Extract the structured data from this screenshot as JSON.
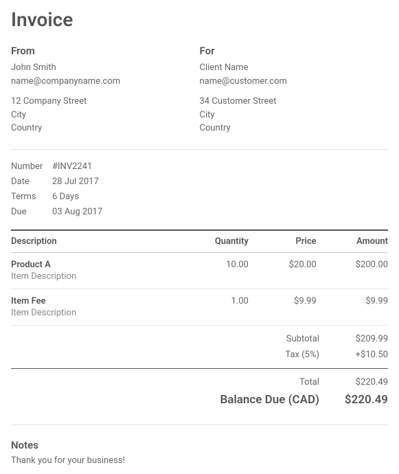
{
  "title": "Invoice",
  "from": {
    "heading": "From",
    "name": "John Smith",
    "email": "name@companyname.com",
    "street": "12 Company Street",
    "city": "City",
    "country": "Country"
  },
  "for": {
    "heading": "For",
    "name": "Client Name",
    "email": "name@customer.com",
    "street": "34 Customer Street",
    "city": "City",
    "country": "Country"
  },
  "meta": {
    "number_label": "Number",
    "number_value": "#INV2241",
    "date_label": "Date",
    "date_value": "28 Jul 2017",
    "terms_label": "Terms",
    "terms_value": "6 Days",
    "due_label": "Due",
    "due_value": "03 Aug 2017"
  },
  "columns": {
    "description": "Description",
    "quantity": "Quantity",
    "price": "Price",
    "amount": "Amount"
  },
  "items": [
    {
      "name": "Product A",
      "desc": "Item Description",
      "qty": "10.00",
      "price": "$20.00",
      "amount": "$200.00"
    },
    {
      "name": "Item Fee",
      "desc": "Item Description",
      "qty": "1.00",
      "price": "$9.99",
      "amount": "$9.99"
    }
  ],
  "totals": {
    "subtotal_label": "Subtotal",
    "subtotal_value": "$209.99",
    "tax_label": "Tax (5%)",
    "tax_value": "+$10.50",
    "total_label": "Total",
    "total_value": "$220.49",
    "balance_label": "Balance Due (CAD)",
    "balance_value": "$220.49"
  },
  "notes": {
    "heading": "Notes",
    "text": "Thank you for your business!"
  }
}
